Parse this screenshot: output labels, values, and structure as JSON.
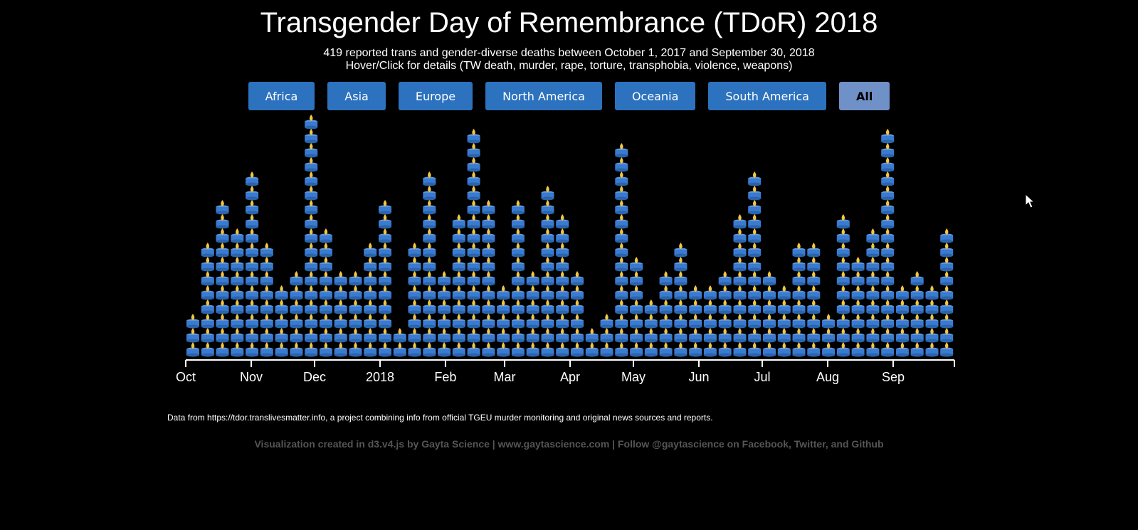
{
  "title": "Transgender Day of Remembrance (TDoR) 2018",
  "subtitle_line1": "419 reported trans and gender-diverse deaths between October 1, 2017 and September 30, 2018",
  "subtitle_line2": "Hover/Click for details (TW death, murder, rape, torture, transphobia, violence, weapons)",
  "buttons": [
    "Africa",
    "Asia",
    "Europe",
    "North America",
    "Oceania",
    "South America",
    "All"
  ],
  "active_button": "All",
  "source_text": "Data from https://tdor.translivesmatter.info, a project combining info from official TGEU murder monitoring and original news sources and reports.",
  "credit_text": "Visualization created in d3.v4.js by Gayta Science | www.gaytascience.com | Follow @gaytascience on Facebook, Twitter, and Github",
  "colors": {
    "background": "#000000",
    "button": "#2c72be",
    "button_active": "#7090c8",
    "candle": "#3a7ad0",
    "flame": "#f5c542",
    "credit": "#555555"
  },
  "icons": {
    "mark": "candle-icon",
    "cursor": "cursor-icon"
  },
  "chart_data": {
    "type": "bar",
    "unit": "deaths per week (each candle = 1 death)",
    "x_start": "2017-10-01",
    "x_end": "2018-09-30",
    "tick_labels": [
      "Oct",
      "Nov",
      "Dec",
      "2018",
      "Feb",
      "Mar",
      "Apr",
      "May",
      "Jun",
      "Jul",
      "Aug",
      "Sep"
    ],
    "weeks": [
      {
        "week": "2017-10-01",
        "value": 3
      },
      {
        "week": "2017-10-08",
        "value": 8
      },
      {
        "week": "2017-10-15",
        "value": 11
      },
      {
        "week": "2017-10-22",
        "value": 9
      },
      {
        "week": "2017-10-29",
        "value": 13
      },
      {
        "week": "2017-11-05",
        "value": 8
      },
      {
        "week": "2017-11-12",
        "value": 5
      },
      {
        "week": "2017-11-19",
        "value": 6
      },
      {
        "week": "2017-11-26",
        "value": 17
      },
      {
        "week": "2017-12-03",
        "value": 9
      },
      {
        "week": "2017-12-10",
        "value": 6
      },
      {
        "week": "2017-12-17",
        "value": 6
      },
      {
        "week": "2017-12-24",
        "value": 8
      },
      {
        "week": "2017-12-31",
        "value": 11
      },
      {
        "week": "2018-01-07",
        "value": 2
      },
      {
        "week": "2018-01-14",
        "value": 8
      },
      {
        "week": "2018-01-21",
        "value": 13
      },
      {
        "week": "2018-01-28",
        "value": 6
      },
      {
        "week": "2018-02-04",
        "value": 10
      },
      {
        "week": "2018-02-11",
        "value": 16
      },
      {
        "week": "2018-02-18",
        "value": 11
      },
      {
        "week": "2018-02-25",
        "value": 5
      },
      {
        "week": "2018-03-04",
        "value": 11
      },
      {
        "week": "2018-03-11",
        "value": 6
      },
      {
        "week": "2018-03-18",
        "value": 12
      },
      {
        "week": "2018-03-25",
        "value": 10
      },
      {
        "week": "2018-04-01",
        "value": 6
      },
      {
        "week": "2018-04-08",
        "value": 2
      },
      {
        "week": "2018-04-15",
        "value": 3
      },
      {
        "week": "2018-04-22",
        "value": 15
      },
      {
        "week": "2018-04-29",
        "value": 7
      },
      {
        "week": "2018-05-06",
        "value": 4
      },
      {
        "week": "2018-05-13",
        "value": 6
      },
      {
        "week": "2018-05-20",
        "value": 8
      },
      {
        "week": "2018-05-27",
        "value": 5
      },
      {
        "week": "2018-06-03",
        "value": 5
      },
      {
        "week": "2018-06-10",
        "value": 6
      },
      {
        "week": "2018-06-17",
        "value": 10
      },
      {
        "week": "2018-06-24",
        "value": 13
      },
      {
        "week": "2018-07-01",
        "value": 6
      },
      {
        "week": "2018-07-08",
        "value": 5
      },
      {
        "week": "2018-07-15",
        "value": 8
      },
      {
        "week": "2018-07-22",
        "value": 8
      },
      {
        "week": "2018-07-29",
        "value": 3
      },
      {
        "week": "2018-08-05",
        "value": 10
      },
      {
        "week": "2018-08-12",
        "value": 7
      },
      {
        "week": "2018-08-19",
        "value": 9
      },
      {
        "week": "2018-08-26",
        "value": 16
      },
      {
        "week": "2018-09-02",
        "value": 5
      },
      {
        "week": "2018-09-09",
        "value": 6
      },
      {
        "week": "2018-09-16",
        "value": 5
      },
      {
        "week": "2018-09-23",
        "value": 9
      }
    ]
  }
}
